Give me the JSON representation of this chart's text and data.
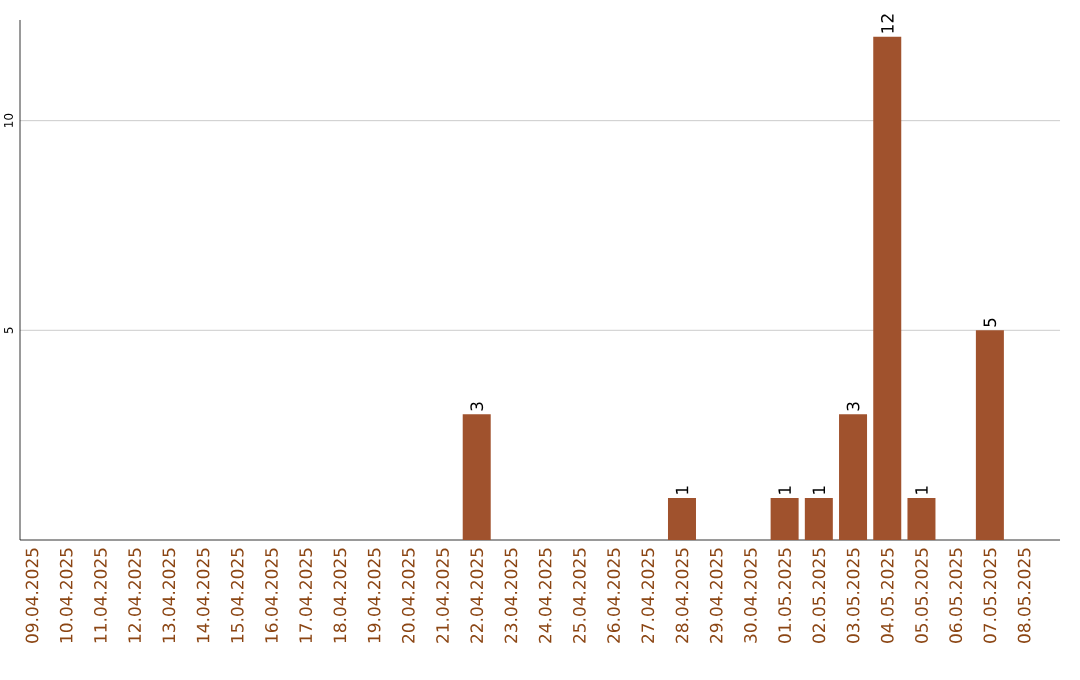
{
  "chart_data": {
    "type": "bar",
    "categories": [
      "09.04.2025",
      "10.04.2025",
      "11.04.2025",
      "12.04.2025",
      "13.04.2025",
      "14.04.2025",
      "15.04.2025",
      "16.04.2025",
      "17.04.2025",
      "18.04.2025",
      "19.04.2025",
      "20.04.2025",
      "21.04.2025",
      "22.04.2025",
      "23.04.2025",
      "24.04.2025",
      "25.04.2025",
      "26.04.2025",
      "27.04.2025",
      "28.04.2025",
      "29.04.2025",
      "30.04.2025",
      "01.05.2025",
      "02.05.2025",
      "03.05.2025",
      "04.05.2025",
      "05.05.2025",
      "06.05.2025",
      "07.05.2025",
      "08.05.2025"
    ],
    "values": [
      0,
      0,
      0,
      0,
      0,
      0,
      0,
      0,
      0,
      0,
      0,
      0,
      0,
      3,
      0,
      0,
      0,
      0,
      0,
      1,
      0,
      0,
      1,
      1,
      3,
      12,
      1,
      0,
      5,
      0
    ],
    "value_labels": [
      null,
      null,
      null,
      null,
      null,
      null,
      null,
      null,
      null,
      null,
      null,
      null,
      null,
      "3",
      null,
      null,
      null,
      null,
      null,
      "1",
      null,
      null,
      "1",
      "1",
      "3",
      "12",
      "1",
      null,
      "5",
      null
    ],
    "color": "#a0522d",
    "ylim": [
      0,
      12.4
    ],
    "yticks": [
      5,
      10
    ],
    "grid": "y"
  }
}
